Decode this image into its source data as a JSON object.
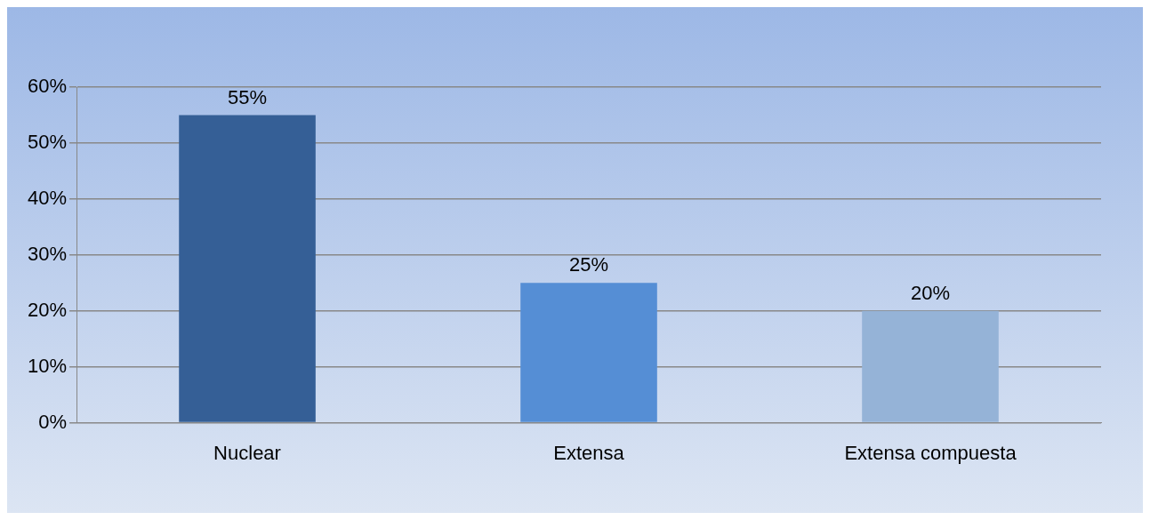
{
  "chart_data": {
    "type": "bar",
    "categories": [
      "Nuclear",
      "Extensa",
      "Extensa compuesta"
    ],
    "values": [
      55,
      25,
      20
    ],
    "colors": [
      "#355f96",
      "#558ed5",
      "#95b3d7"
    ],
    "value_labels": [
      "55%",
      "25%",
      "20%"
    ],
    "ylim": [
      0,
      60
    ],
    "yticks": [
      {
        "value": 0,
        "label": "0%"
      },
      {
        "value": 10,
        "label": "10%"
      },
      {
        "value": 20,
        "label": "20%"
      },
      {
        "value": 30,
        "label": "30%"
      },
      {
        "value": 40,
        "label": "40%"
      },
      {
        "value": 50,
        "label": "50%"
      },
      {
        "value": 60,
        "label": "60%"
      }
    ],
    "grid": "y"
  }
}
